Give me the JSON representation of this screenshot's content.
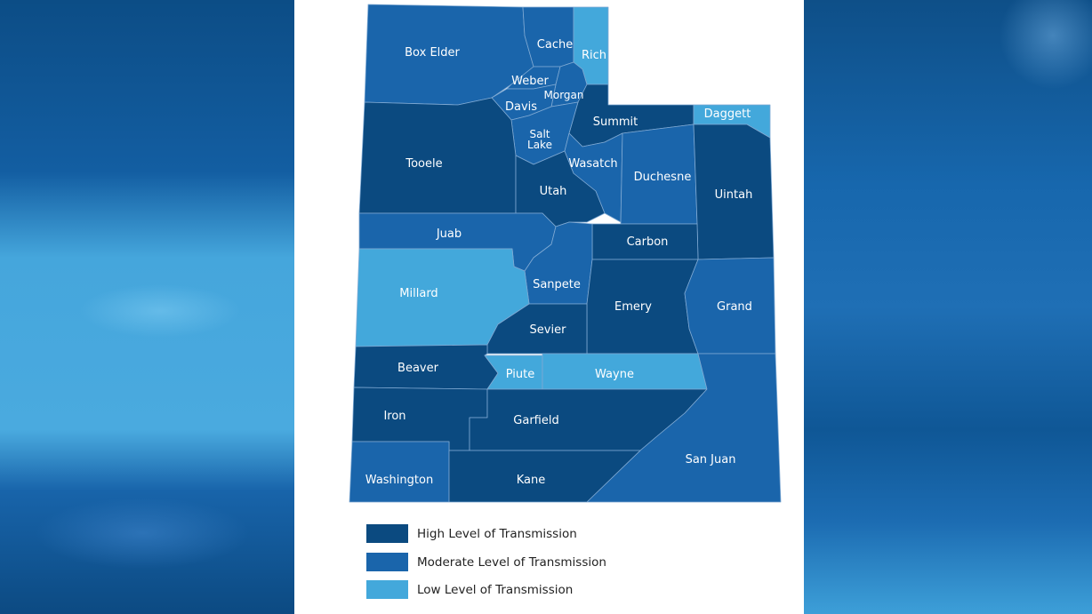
{
  "colors": {
    "high": "#0b4a80",
    "moderate": "#1a65ab",
    "low": "#43a8db"
  },
  "counties": [
    {
      "name": "Box Elder",
      "level": "moderate"
    },
    {
      "name": "Cache",
      "level": "moderate"
    },
    {
      "name": "Rich",
      "level": "low"
    },
    {
      "name": "Weber",
      "level": "moderate"
    },
    {
      "name": "Morgan",
      "level": "moderate"
    },
    {
      "name": "Davis",
      "level": "moderate"
    },
    {
      "name": "Summit",
      "level": "high"
    },
    {
      "name": "Daggett",
      "level": "low"
    },
    {
      "name": "Salt Lake",
      "level": "moderate"
    },
    {
      "name": "Tooele",
      "level": "high"
    },
    {
      "name": "Utah",
      "level": "high"
    },
    {
      "name": "Wasatch",
      "level": "moderate"
    },
    {
      "name": "Duchesne",
      "level": "moderate"
    },
    {
      "name": "Uintah",
      "level": "high"
    },
    {
      "name": "Juab",
      "level": "moderate"
    },
    {
      "name": "Carbon",
      "level": "high"
    },
    {
      "name": "Sanpete",
      "level": "moderate"
    },
    {
      "name": "Millard",
      "level": "low"
    },
    {
      "name": "Emery",
      "level": "high"
    },
    {
      "name": "Grand",
      "level": "moderate"
    },
    {
      "name": "Sevier",
      "level": "high"
    },
    {
      "name": "Beaver",
      "level": "high"
    },
    {
      "name": "Piute",
      "level": "low"
    },
    {
      "name": "Wayne",
      "level": "low"
    },
    {
      "name": "Iron",
      "level": "high"
    },
    {
      "name": "Garfield",
      "level": "high"
    },
    {
      "name": "San Juan",
      "level": "moderate"
    },
    {
      "name": "Washington",
      "level": "moderate"
    },
    {
      "name": "Kane",
      "level": "high"
    }
  ],
  "salt_lake_lines": [
    "Salt",
    "Lake"
  ],
  "legend": [
    {
      "label": "High Level of Transmission",
      "level": "high"
    },
    {
      "label": "Moderate Level of Transmission",
      "level": "moderate"
    },
    {
      "label": "Low Level of Transmission",
      "level": "low"
    }
  ]
}
